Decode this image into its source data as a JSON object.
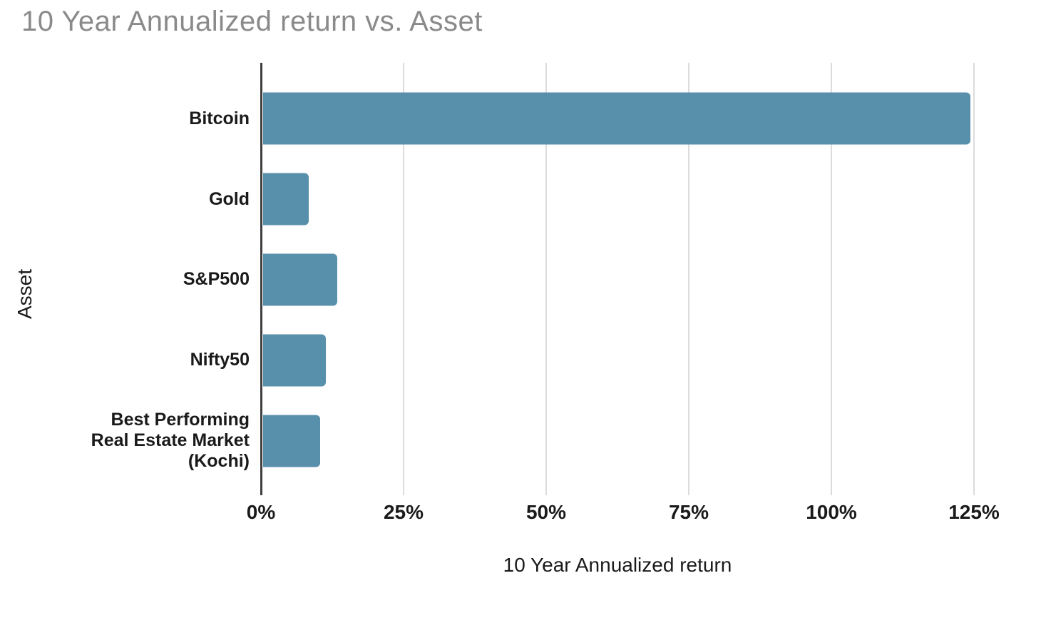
{
  "chart_data": {
    "type": "bar",
    "orientation": "horizontal",
    "title": "10 Year Annualized return vs. Asset",
    "xlabel": "10 Year Annualized return",
    "ylabel": "Asset",
    "categories": [
      "Bitcoin",
      "Gold",
      "S&P500",
      "Nifty50",
      "Best Performing Real Estate Market (Kochi)"
    ],
    "values": [
      124,
      8,
      13,
      11,
      10
    ],
    "unit": "%",
    "xlim": [
      0,
      135
    ],
    "x_ticks": [
      0,
      25,
      50,
      75,
      100,
      125
    ],
    "x_tick_labels": [
      "0%",
      "25%",
      "50%",
      "75%",
      "100%",
      "125%"
    ],
    "grid": true,
    "legend": false,
    "colors": {
      "bar": "#5890ac",
      "axis_line": "#3f3f3f",
      "gridline": "#dcdcdc",
      "title": "#8a8a8a",
      "text": "#1a1a1a"
    }
  }
}
